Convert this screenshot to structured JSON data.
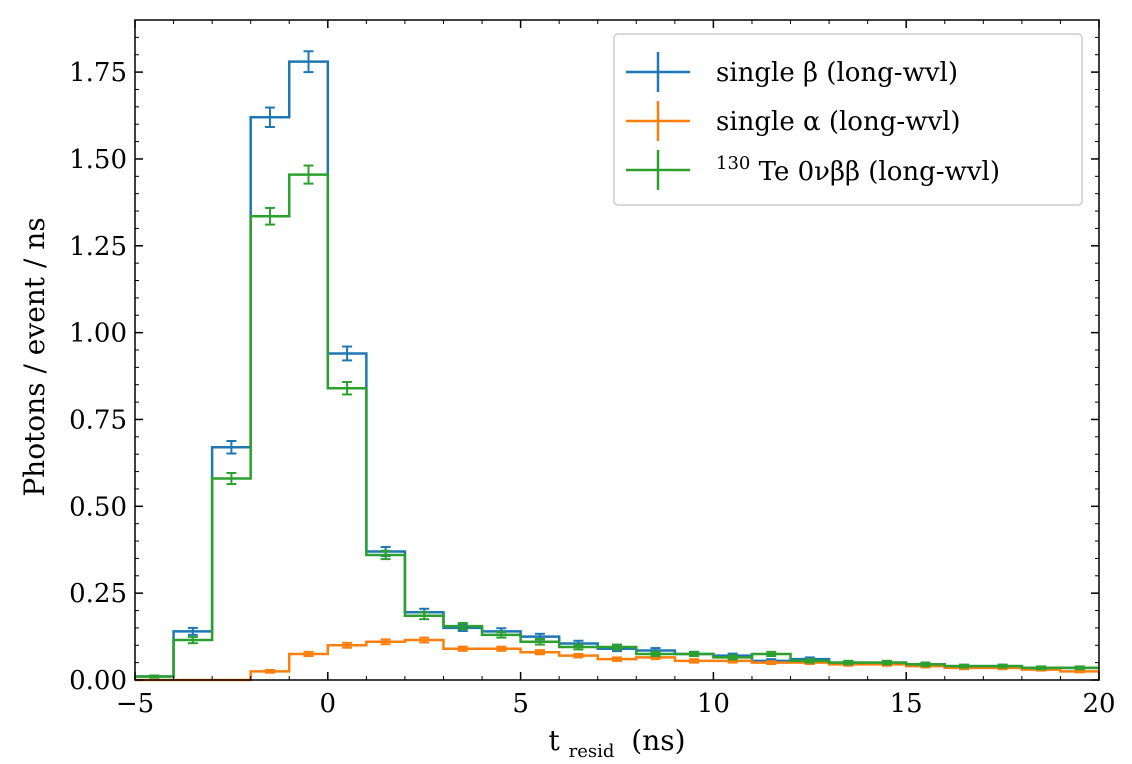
{
  "chart_data": {
    "type": "line",
    "drawstyle": "steps",
    "title": "",
    "xlabel": {
      "main": "t",
      "sub": "resid",
      "unit": "(ns)"
    },
    "ylabel": "Photons / event / ns",
    "xlim": [
      -5,
      20
    ],
    "ylim": [
      0,
      1.9
    ],
    "xticks": [
      -5,
      0,
      5,
      10,
      15,
      20
    ],
    "xtick_labels": [
      "−5",
      "0",
      "5",
      "10",
      "15",
      "20"
    ],
    "yticks": [
      0,
      0.25,
      0.5,
      0.75,
      1.0,
      1.25,
      1.5,
      1.75
    ],
    "ytick_labels": [
      "0.00",
      "0.25",
      "0.50",
      "0.75",
      "1.00",
      "1.25",
      "1.50",
      "1.75"
    ],
    "grid": false,
    "legend_position": "top-right",
    "bin_edges": [
      -5,
      -4,
      -3,
      -2,
      -1,
      0,
      1,
      2,
      3,
      4,
      5,
      6,
      7,
      8,
      9,
      10,
      11,
      12,
      13,
      14,
      15,
      16,
      17,
      18,
      19,
      20
    ],
    "series": [
      {
        "name": "single β (long-wvl)",
        "color": "#1f77b4",
        "values": [
          0.01,
          0.14,
          0.67,
          1.62,
          1.78,
          0.94,
          0.37,
          0.195,
          0.15,
          0.14,
          0.125,
          0.105,
          0.09,
          0.085,
          0.075,
          0.07,
          0.055,
          0.06,
          0.05,
          0.05,
          0.045,
          0.04,
          0.04,
          0.035,
          0.035
        ],
        "errors": [
          0.003,
          0.01,
          0.018,
          0.028,
          0.03,
          0.02,
          0.013,
          0.01,
          0.009,
          0.009,
          0.008,
          0.008,
          0.007,
          0.007,
          0.006,
          0.006,
          0.005,
          0.005,
          0.005,
          0.005,
          0.005,
          0.004,
          0.004,
          0.004,
          0.004
        ]
      },
      {
        "name": "single α (long-wvl)",
        "color": "#ff7f0e",
        "values": [
          0.0,
          0.0,
          0.0,
          0.025,
          0.075,
          0.1,
          0.11,
          0.115,
          0.09,
          0.09,
          0.08,
          0.07,
          0.06,
          0.065,
          0.055,
          0.055,
          0.05,
          0.05,
          0.045,
          0.045,
          0.04,
          0.035,
          0.035,
          0.03,
          0.025
        ],
        "errors": [
          0.0,
          0.0,
          0.0,
          0.004,
          0.006,
          0.007,
          0.007,
          0.007,
          0.006,
          0.006,
          0.006,
          0.005,
          0.005,
          0.005,
          0.005,
          0.005,
          0.004,
          0.004,
          0.004,
          0.004,
          0.004,
          0.004,
          0.004,
          0.003,
          0.003
        ]
      },
      {
        "name_prefix_sup": "130",
        "name": "Te 0νββ (long-wvl)",
        "color": "#2ca02c",
        "values": [
          0.01,
          0.115,
          0.58,
          1.335,
          1.455,
          0.84,
          0.36,
          0.185,
          0.155,
          0.13,
          0.11,
          0.095,
          0.095,
          0.075,
          0.075,
          0.065,
          0.075,
          0.055,
          0.05,
          0.05,
          0.045,
          0.04,
          0.04,
          0.035,
          0.035
        ],
        "errors": [
          0.003,
          0.009,
          0.016,
          0.024,
          0.026,
          0.018,
          0.012,
          0.01,
          0.009,
          0.008,
          0.008,
          0.007,
          0.007,
          0.006,
          0.006,
          0.006,
          0.006,
          0.005,
          0.005,
          0.005,
          0.005,
          0.004,
          0.004,
          0.004,
          0.004
        ]
      }
    ]
  }
}
